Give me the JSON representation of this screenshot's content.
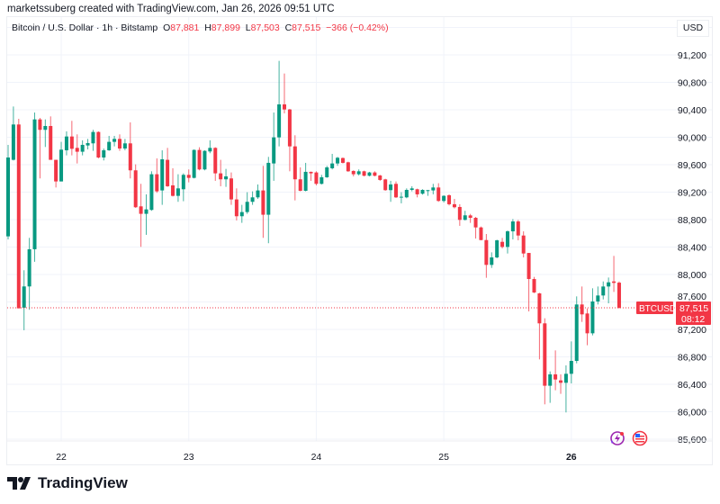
{
  "credit": "marketssuberg created with TradingView.com, Jan 26, 2026 09:51 UTC",
  "legend": {
    "symbol": "Bitcoin / U.S. Dollar · 1h · Bitstamp",
    "o_label": "O",
    "o": "87,881",
    "h_label": "H",
    "h": "87,899",
    "l_label": "L",
    "l": "87,503",
    "c_label": "C",
    "c": "87,515",
    "change": "−366 (−0.42%)"
  },
  "currency": "USD",
  "last_price": {
    "ticker": "BTCUSD",
    "price": "87,515",
    "countdown": "08:12",
    "value": 87515
  },
  "brand": "TradingView",
  "icons": [
    "lightning-event-icon",
    "us-flag-icon"
  ],
  "colors": {
    "up": "#089981",
    "down": "#f23645",
    "grid": "#f0f3fa"
  },
  "chart_data": {
    "type": "candlestick",
    "title": "Bitcoin / U.S. Dollar · 1h · Bitstamp",
    "interval": "1h",
    "ylim": [
      85600,
      91600
    ],
    "y_ticks": [
      "91,200",
      "90,800",
      "90,400",
      "90,000",
      "89,600",
      "89,200",
      "88,800",
      "88,400",
      "88,000",
      "87,600",
      "87,200",
      "86,800",
      "86,400",
      "86,000",
      "85,600"
    ],
    "y_tick_values": [
      91200,
      90800,
      90400,
      90000,
      89600,
      89200,
      88800,
      88400,
      88000,
      87600,
      87200,
      86800,
      86400,
      86000,
      85600
    ],
    "x_ticks": [
      {
        "label": "22",
        "candle": 10
      },
      {
        "label": "23",
        "candle": 34
      },
      {
        "label": "24",
        "candle": 58
      },
      {
        "label": "25",
        "candle": 82
      },
      {
        "label": "26",
        "candle": 106,
        "bold": true
      }
    ],
    "grid": true,
    "candles_ohlc": [
      [
        88556,
        89889,
        88512,
        89705
      ],
      [
        89671,
        90448,
        89662,
        90186
      ],
      [
        90186,
        90269,
        87507,
        87507
      ],
      [
        87516,
        88062,
        87188,
        87826
      ],
      [
        87826,
        88534,
        87486,
        88368
      ],
      [
        88368,
        90361,
        88185,
        90260
      ],
      [
        90260,
        90282,
        89400,
        90108
      ],
      [
        90108,
        90260,
        89858,
        90164
      ],
      [
        90164,
        90304,
        89671,
        89671
      ],
      [
        89671,
        89671,
        89268,
        89356
      ],
      [
        89356,
        89933,
        89356,
        89819
      ],
      [
        89810,
        90086,
        89736,
        90011
      ],
      [
        90011,
        90239,
        89736,
        89832
      ],
      [
        89845,
        90042,
        89618,
        89789
      ],
      [
        89789,
        89955,
        89736,
        89889
      ],
      [
        89880,
        89976,
        89823,
        89915
      ],
      [
        89911,
        90108,
        89802,
        90077
      ],
      [
        90077,
        90086,
        89692,
        89705
      ],
      [
        89705,
        89836,
        89662,
        89810
      ],
      [
        89810,
        90020,
        89802,
        89933
      ],
      [
        89933,
        90020,
        89867,
        89976
      ],
      [
        89976,
        90042,
        89802,
        89836
      ],
      [
        89836,
        89976,
        89810,
        89911
      ],
      [
        89911,
        90217,
        89400,
        89518
      ],
      [
        89518,
        89605,
        88971,
        88980
      ],
      [
        88993,
        89321,
        88403,
        88884
      ],
      [
        88884,
        89168,
        88578,
        88949
      ],
      [
        88941,
        89504,
        88928,
        89461
      ],
      [
        89461,
        89692,
        89190,
        89212
      ],
      [
        89225,
        89810,
        89015,
        89679
      ],
      [
        89671,
        89845,
        89277,
        89286
      ],
      [
        89299,
        89548,
        89137,
        89146
      ],
      [
        89146,
        89461,
        89059,
        89255
      ],
      [
        89242,
        89474,
        89068,
        89452
      ],
      [
        89452,
        89531,
        89343,
        89408
      ],
      [
        89408,
        89823,
        89400,
        89815
      ],
      [
        89815,
        89854,
        89518,
        89531
      ],
      [
        89531,
        89810,
        89518,
        89802
      ],
      [
        89793,
        89955,
        89767,
        89845
      ],
      [
        89845,
        89854,
        89365,
        89474
      ],
      [
        89474,
        89671,
        89286,
        89387
      ],
      [
        89387,
        89539,
        89277,
        89430
      ],
      [
        89400,
        89487,
        89015,
        89094
      ],
      [
        89094,
        89255,
        88788,
        88849
      ],
      [
        88849,
        89015,
        88753,
        88910
      ],
      [
        88910,
        89199,
        88884,
        89059
      ],
      [
        89059,
        89212,
        89015,
        89124
      ],
      [
        89124,
        89312,
        89102,
        89225
      ],
      [
        89225,
        89583,
        88534,
        88871
      ],
      [
        88871,
        89714,
        88456,
        89627
      ],
      [
        89618,
        90361,
        89365,
        89998
      ],
      [
        89998,
        91113,
        89867,
        90479
      ],
      [
        90479,
        90929,
        90348,
        90405
      ],
      [
        90405,
        90413,
        89504,
        89867
      ],
      [
        89867,
        90029,
        89080,
        89387
      ],
      [
        89387,
        89561,
        89212,
        89220
      ],
      [
        89220,
        89627,
        89212,
        89496
      ],
      [
        89496,
        89500,
        89365,
        89474
      ],
      [
        89487,
        89504,
        89299,
        89321
      ],
      [
        89321,
        89452,
        89312,
        89417
      ],
      [
        89417,
        89583,
        89408,
        89561
      ],
      [
        89548,
        89758,
        89531,
        89618
      ],
      [
        89618,
        89714,
        89583,
        89701
      ],
      [
        89697,
        89705,
        89618,
        89627
      ],
      [
        89635,
        89644,
        89496,
        89504
      ],
      [
        89509,
        89518,
        89430,
        89461
      ],
      [
        89461,
        89531,
        89443,
        89504
      ],
      [
        89504,
        89513,
        89430,
        89439
      ],
      [
        89439,
        89496,
        89430,
        89487
      ],
      [
        89487,
        89504,
        89430,
        89439
      ],
      [
        89443,
        89452,
        89365,
        89378
      ],
      [
        89386,
        89395,
        89220,
        89229
      ],
      [
        89229,
        89365,
        89059,
        89312
      ],
      [
        89321,
        89356,
        89115,
        89124
      ],
      [
        89124,
        89199,
        89037,
        89133
      ],
      [
        89124,
        89255,
        89111,
        89233
      ],
      [
        89233,
        89286,
        89212,
        89255
      ],
      [
        89242,
        89251,
        89124,
        89168
      ],
      [
        89177,
        89242,
        89164,
        89233
      ],
      [
        89225,
        89233,
        89146,
        89229
      ],
      [
        89225,
        89321,
        89168,
        89268
      ],
      [
        89268,
        89330,
        89059,
        89072
      ],
      [
        89072,
        89155,
        89050,
        89146
      ],
      [
        89155,
        89168,
        89006,
        89024
      ],
      [
        89024,
        89102,
        88963,
        88980
      ],
      [
        88984,
        89024,
        88709,
        88796
      ],
      [
        88796,
        88928,
        88788,
        88862
      ],
      [
        88861,
        88883,
        88752,
        88826
      ],
      [
        88826,
        88839,
        88524,
        88686
      ],
      [
        88686,
        88699,
        88498,
        88502
      ],
      [
        88502,
        88590,
        87952,
        88140
      ],
      [
        88140,
        88323,
        88096,
        88249
      ],
      [
        88249,
        88507,
        88236,
        88498
      ],
      [
        88476,
        88533,
        88380,
        88402
      ],
      [
        88402,
        88642,
        88306,
        88629
      ],
      [
        88629,
        88808,
        88511,
        88773
      ],
      [
        88773,
        88795,
        88498,
        88568
      ],
      [
        88568,
        88629,
        88249,
        88306
      ],
      [
        88314,
        88314,
        87462,
        87934
      ],
      [
        87934,
        87965,
        87729,
        87738
      ],
      [
        87725,
        87733,
        86763,
        87288
      ],
      [
        87288,
        87362,
        86108,
        86379
      ],
      [
        86379,
        86588,
        86130,
        86545
      ],
      [
        86545,
        86894,
        86313,
        86470
      ],
      [
        86457,
        86545,
        86261,
        86422
      ],
      [
        86422,
        86676,
        85990,
        86553
      ],
      [
        86553,
        87025,
        86413,
        86741
      ],
      [
        86741,
        87681,
        86706,
        87563
      ],
      [
        87563,
        87825,
        87309,
        87419
      ],
      [
        87432,
        87506,
        86969,
        87143
      ],
      [
        87143,
        87799,
        87113,
        87607
      ],
      [
        87607,
        87825,
        87563,
        87694
      ],
      [
        87694,
        87899,
        87637,
        87825
      ],
      [
        87825,
        87956,
        87580,
        87886
      ],
      [
        87899,
        88271,
        87746,
        87878
      ],
      [
        87881,
        87899,
        87503,
        87515
      ]
    ]
  }
}
